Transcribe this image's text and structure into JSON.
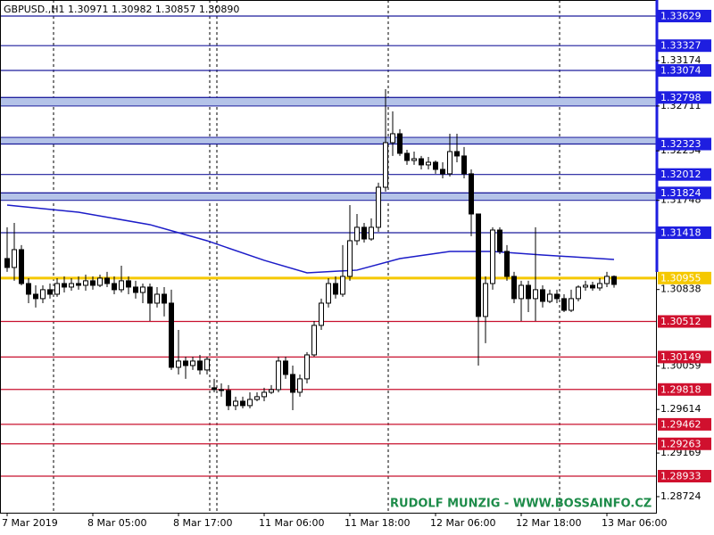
{
  "chart_data": {
    "type": "candlestick",
    "title": "GBPUSD.,H1  1.30971 1.30982 1.30857 1.30890",
    "annotation": "RUDOLF MUNZIG - WWW.BOSSAINFO.CZ",
    "categories": [
      "7 Mar 2019",
      null,
      null,
      null,
      null,
      null,
      null,
      null,
      null,
      null,
      null,
      null,
      "8 Mar 05:00",
      null,
      null,
      null,
      null,
      null,
      null,
      null,
      null,
      null,
      null,
      null,
      "8 Mar 17:00",
      null,
      null,
      null,
      null,
      null,
      null,
      null,
      null,
      null,
      null,
      null,
      "11 Mar 06:00",
      null,
      null,
      null,
      null,
      null,
      null,
      null,
      null,
      null,
      null,
      null,
      "11 Mar 18:00",
      null,
      null,
      null,
      null,
      null,
      null,
      null,
      null,
      null,
      null,
      null,
      "12 Mar 06:00",
      null,
      null,
      null,
      null,
      null,
      null,
      null,
      null,
      null,
      null,
      null,
      "12 Mar 18:00",
      null,
      null,
      null,
      null,
      null,
      null,
      null,
      null,
      null,
      null,
      null,
      "13 Mar 06:00",
      null
    ],
    "open": [
      1.31154,
      1.31063,
      1.31245,
      1.30899,
      1.3079,
      1.30745,
      1.30836,
      1.3079,
      1.30899,
      1.30863,
      1.30899,
      1.30881,
      1.30927,
      1.30881,
      1.30954,
      1.30899,
      1.30836,
      1.30927,
      1.30863,
      1.30808,
      1.30863,
      1.30699,
      1.3079,
      1.30699,
      1.30044,
      1.30108,
      1.30062,
      1.30108,
      1.30017,
      1.29835,
      1.29816,
      1.29807,
      1.29653,
      1.29698,
      1.29653,
      1.29716,
      1.29744,
      1.29789,
      1.29816,
      1.30108,
      1.29971,
      1.29789,
      1.29926,
      1.30171,
      1.30472,
      1.30699,
      1.30899,
      1.3079,
      1.30972,
      1.31336,
      1.31473,
      1.31354,
      1.31473,
      1.31882,
      1.32337,
      1.32428,
      1.32228,
      1.32155,
      1.32173,
      1.3211,
      1.32137,
      1.32064,
      1.32019,
      1.32246,
      1.32201,
      1.32019,
      1.31609,
      1.30563,
      1.30899,
      1.31445,
      1.31227,
      1.30972,
      1.30745,
      1.30881,
      1.30745,
      1.30836,
      1.30717,
      1.3079,
      1.30745,
      1.30626,
      1.30745,
      1.30863,
      1.30881,
      1.30854,
      1.30899,
      1.30971
    ],
    "high": [
      1.31473,
      1.31518,
      1.31291,
      1.30954,
      1.30881,
      1.30881,
      1.30899,
      1.30954,
      1.30972,
      1.30954,
      1.30972,
      1.3099,
      1.30972,
      1.3099,
      1.31018,
      1.30972,
      1.31081,
      1.30972,
      1.30927,
      1.30899,
      1.30899,
      1.30863,
      1.30863,
      1.30836,
      1.30426,
      1.30153,
      1.30153,
      1.30171,
      1.30153,
      1.29926,
      1.2988,
      1.29862,
      1.29744,
      1.29744,
      1.29789,
      1.29789,
      1.29835,
      1.29862,
      1.30153,
      1.30153,
      1.30062,
      1.29971,
      1.30199,
      1.30517,
      1.30745,
      1.30954,
      1.30972,
      1.31291,
      1.317,
      1.31609,
      1.31518,
      1.31564,
      1.31928,
      1.32883,
      1.32656,
      1.32474,
      1.32264,
      1.32246,
      1.32201,
      1.32191,
      1.32155,
      1.32137,
      1.32428,
      1.32428,
      1.32292,
      1.32064,
      1.31609,
      1.30972,
      1.31473,
      1.31473,
      1.31291,
      1.31018,
      1.30927,
      1.30927,
      1.31473,
      1.30881,
      1.30836,
      1.30836,
      1.3079,
      1.30836,
      1.30881,
      1.30927,
      1.30917,
      1.30954,
      1.31018,
      1.30982
    ],
    "low": [
      1.31018,
      1.30927,
      1.30881,
      1.30699,
      1.30654,
      1.30699,
      1.30745,
      1.30763,
      1.30808,
      1.30826,
      1.30836,
      1.30826,
      1.30836,
      1.30863,
      1.30863,
      1.3079,
      1.30808,
      1.3079,
      1.30745,
      1.30699,
      1.30517,
      1.30654,
      1.30563,
      1.30017,
      1.29971,
      1.29926,
      1.30017,
      1.29971,
      1.29971,
      1.29789,
      1.29744,
      1.29607,
      1.29607,
      1.29625,
      1.29625,
      1.29698,
      1.29698,
      1.29771,
      1.29789,
      1.29926,
      1.29607,
      1.29744,
      1.2988,
      1.30153,
      1.30426,
      1.30654,
      1.30745,
      1.30763,
      1.30927,
      1.31291,
      1.31318,
      1.31336,
      1.31427,
      1.31837,
      1.32201,
      1.32201,
      1.3211,
      1.3211,
      1.32064,
      1.32064,
      1.32019,
      1.31973,
      1.31991,
      1.32137,
      1.31973,
      1.31382,
      1.30062,
      1.3029,
      1.30836,
      1.312,
      1.30927,
      1.30699,
      1.30517,
      1.30608,
      1.30517,
      1.30654,
      1.30699,
      1.30699,
      1.30608,
      1.30608,
      1.30717,
      1.30826,
      1.30826,
      1.30826,
      1.30863,
      1.30857
    ],
    "close": [
      1.31063,
      1.31245,
      1.30899,
      1.3079,
      1.30745,
      1.30836,
      1.3079,
      1.30899,
      1.30863,
      1.30899,
      1.30881,
      1.30927,
      1.30881,
      1.30954,
      1.30899,
      1.30836,
      1.30927,
      1.30863,
      1.30808,
      1.30863,
      1.30699,
      1.3079,
      1.30699,
      1.30044,
      1.30108,
      1.30062,
      1.30108,
      1.30017,
      1.30126,
      1.29816,
      1.29807,
      1.29653,
      1.29698,
      1.29653,
      1.29716,
      1.29744,
      1.29789,
      1.29816,
      1.30108,
      1.29971,
      1.29789,
      1.29926,
      1.30171,
      1.30472,
      1.30699,
      1.30899,
      1.3079,
      1.30972,
      1.31336,
      1.31473,
      1.31354,
      1.31473,
      1.31882,
      1.32337,
      1.32428,
      1.32228,
      1.32155,
      1.32173,
      1.3211,
      1.32137,
      1.32064,
      1.32019,
      1.32246,
      1.32201,
      1.32019,
      1.31609,
      1.30563,
      1.30899,
      1.31445,
      1.31227,
      1.30972,
      1.30745,
      1.30881,
      1.30745,
      1.30836,
      1.30717,
      1.3079,
      1.30745,
      1.30626,
      1.30745,
      1.30863,
      1.30881,
      1.30854,
      1.30899,
      1.30972,
      1.3089
    ],
    "up_color": "#ffffff",
    "down_color": "#000000",
    "ma": {
      "color": "#1c1cc8",
      "x": [
        0,
        10,
        20,
        28,
        36,
        42,
        49,
        55,
        62,
        68,
        75,
        85
      ],
      "values": [
        1.317,
        1.31627,
        1.315,
        1.31336,
        1.31136,
        1.31008,
        1.31036,
        1.31154,
        1.31227,
        1.31227,
        1.3119,
        1.31145
      ]
    },
    "ylim": [
      1.2856,
      1.33793
    ],
    "yticks": [
      1.33174,
      1.32711,
      1.32254,
      1.31748,
      1.30838,
      1.30059,
      1.29614,
      1.29169,
      1.28724
    ],
    "zones": [
      {
        "values": [
          1.32798,
          1.32711
        ],
        "color": "#b4c3e8"
      },
      {
        "values": [
          1.32391,
          1.32323
        ],
        "color": "#b4c3e8"
      },
      {
        "values": [
          1.31824,
          1.31748
        ],
        "color": "#b4c3e8"
      }
    ],
    "levels": [
      {
        "value": 1.33629,
        "color": "#1c1c9c",
        "label_color": "#1e1ee0"
      },
      {
        "value": 1.33327,
        "color": "#1c1c9c",
        "label_color": "#1e1ee0"
      },
      {
        "value": 1.33074,
        "color": "#1c1c9c",
        "label_color": "#1e1ee0"
      },
      {
        "value": 1.32798,
        "color": "#1c1c9c",
        "label_color": "#1e1ee0"
      },
      {
        "value": 1.32323,
        "color": "#1c1c9c",
        "label_color": "#1e1ee0"
      },
      {
        "value": 1.32012,
        "color": "#1c1c9c",
        "label_color": "#1e1ee0"
      },
      {
        "value": 1.31824,
        "color": "#1c1c9c",
        "label_color": "#1e1ee0"
      },
      {
        "value": 1.31418,
        "color": "#1c1c9c",
        "label_color": "#1e1ee0"
      },
      {
        "value": 1.30955,
        "color": "#f5c800",
        "label_color": "#f5c800"
      },
      {
        "value": 1.30512,
        "color": "#c8102e",
        "label_color": "#d0102e"
      },
      {
        "value": 1.30149,
        "color": "#c8102e",
        "label_color": "#d0102e"
      },
      {
        "value": 1.29818,
        "color": "#c8102e",
        "label_color": "#d0102e"
      },
      {
        "value": 1.29462,
        "color": "#c8102e",
        "label_color": "#d0102e"
      },
      {
        "value": 1.29263,
        "color": "#c8102e",
        "label_color": "#d0102e"
      },
      {
        "value": 1.28933,
        "color": "#c8102e",
        "label_color": "#d0102e"
      }
    ]
  }
}
